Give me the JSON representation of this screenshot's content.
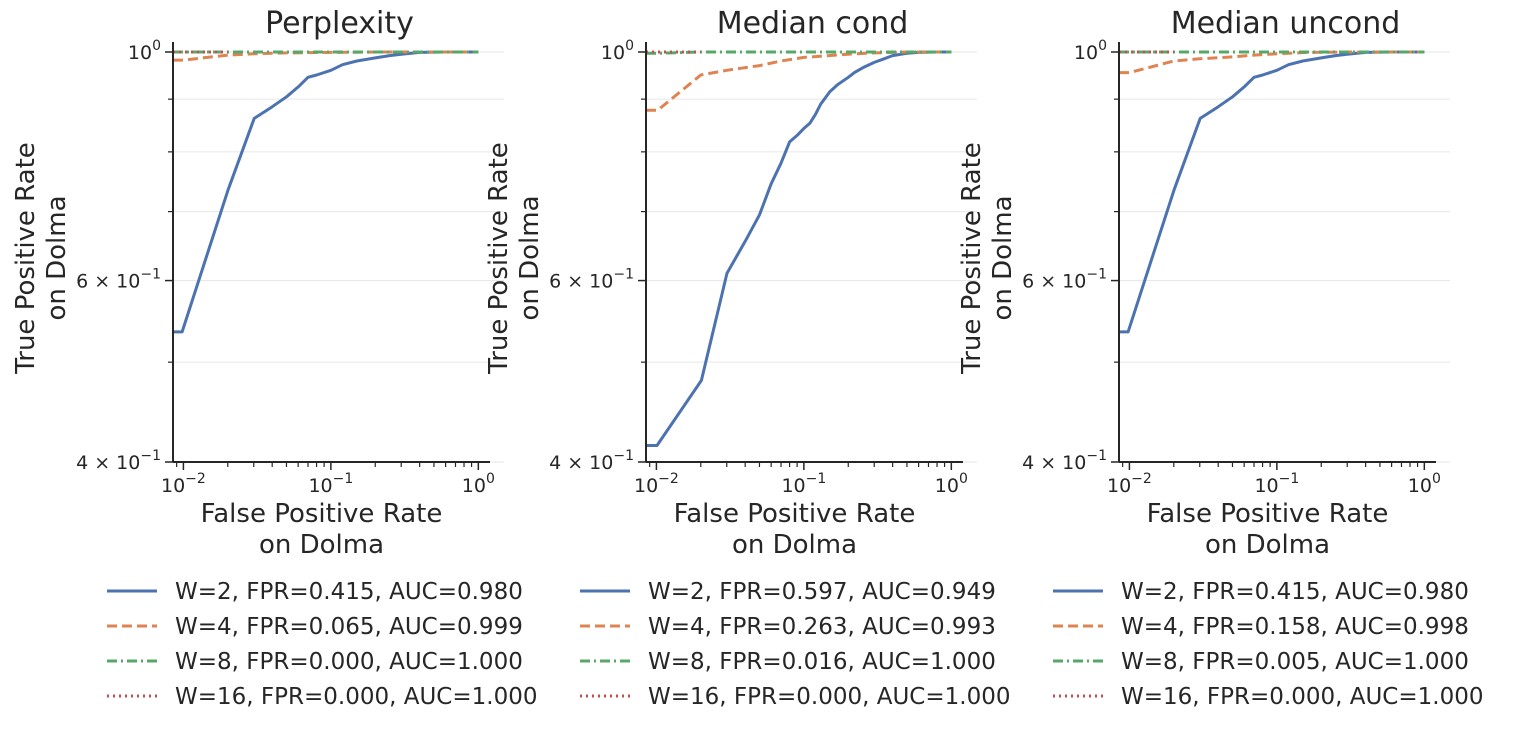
{
  "chart_data": [
    {
      "type": "line",
      "title": "Perplexity",
      "xlabel": "False Positive Rate\non Dolma",
      "ylabel": "True Positive Rate\non Dolma",
      "xscale": "log",
      "yscale": "log",
      "xlim": [
        0.0085,
        1.2
      ],
      "ylim": [
        0.4,
        1.0
      ],
      "grid": "horizontal",
      "xticks": [
        {
          "value": 0.01,
          "base": "10",
          "exp": "−2"
        },
        {
          "value": 0.1,
          "base": "10",
          "exp": "−1"
        },
        {
          "value": 1,
          "base": "10",
          "exp": "0"
        }
      ],
      "yticks": [
        {
          "value": 0.4,
          "prefix": "4 × 10",
          "exp": "−1"
        },
        {
          "value": 0.6,
          "prefix": "6 × 10",
          "exp": "−1"
        },
        {
          "value": 1.0,
          "prefix": "10",
          "exp": "0"
        }
      ],
      "legend_position": "bottom",
      "series": [
        {
          "name": "W=2",
          "label": "W=2, FPR=0.415, AUC=0.980",
          "color": "#4c72b0",
          "style": "solid",
          "x": [
            0.0085,
            0.0098,
            0.0201,
            0.0302,
            0.0401,
            0.0502,
            0.06,
            0.07,
            0.08,
            0.1,
            0.12,
            0.15,
            0.2,
            0.25,
            0.3,
            0.4,
            0.6,
            1.0
          ],
          "y": [
            0.535,
            0.535,
            0.735,
            0.862,
            0.885,
            0.905,
            0.925,
            0.945,
            0.95,
            0.96,
            0.972,
            0.98,
            0.987,
            0.992,
            0.995,
            0.999,
            1.0,
            1.0
          ]
        },
        {
          "name": "W=4",
          "label": "W=4, FPR=0.065, AUC=0.999",
          "color": "#dd8452",
          "style": "dashed",
          "x": [
            0.0085,
            0.01,
            0.02,
            0.03,
            0.05,
            0.1,
            0.2,
            0.4,
            1.0
          ],
          "y": [
            0.982,
            0.982,
            0.993,
            0.996,
            0.998,
            0.999,
            1.0,
            1.0,
            1.0
          ]
        },
        {
          "name": "W=8",
          "label": "W=8, FPR=0.000, AUC=1.000",
          "color": "#55a868",
          "style": "dashdot",
          "x": [
            0.0085,
            1.0
          ],
          "y": [
            1.0,
            1.0
          ]
        },
        {
          "name": "W=16",
          "label": "W=16, FPR=0.000, AUC=1.000",
          "color": "#c44e52",
          "style": "dotted",
          "x": [
            0.0085,
            0.02
          ],
          "y": [
            1.0,
            1.0
          ]
        }
      ]
    },
    {
      "type": "line",
      "title": "Median cond",
      "xlabel": "False Positive Rate\non Dolma",
      "ylabel": "True Positive Rate\non Dolma",
      "xscale": "log",
      "yscale": "log",
      "xlim": [
        0.0085,
        1.2
      ],
      "ylim": [
        0.4,
        1.0
      ],
      "grid": "horizontal",
      "xticks": [
        {
          "value": 0.01,
          "base": "10",
          "exp": "−2"
        },
        {
          "value": 0.1,
          "base": "10",
          "exp": "−1"
        },
        {
          "value": 1,
          "base": "10",
          "exp": "0"
        }
      ],
      "yticks": [
        {
          "value": 0.4,
          "prefix": "4 × 10",
          "exp": "−1"
        },
        {
          "value": 0.6,
          "prefix": "6 × 10",
          "exp": "−1"
        },
        {
          "value": 1.0,
          "prefix": "10",
          "exp": "0"
        }
      ],
      "legend_position": "bottom",
      "series": [
        {
          "name": "W=2",
          "label": "W=2, FPR=0.597, AUC=0.949",
          "color": "#4c72b0",
          "style": "solid",
          "x": [
            0.0085,
            0.0101,
            0.0202,
            0.0301,
            0.04,
            0.05,
            0.06,
            0.07,
            0.08,
            0.09,
            0.1,
            0.11,
            0.12,
            0.13,
            0.15,
            0.17,
            0.2,
            0.22,
            0.25,
            0.3,
            0.35,
            0.4,
            0.5,
            0.6,
            0.8,
            1.0
          ],
          "y": [
            0.415,
            0.415,
            0.48,
            0.61,
            0.655,
            0.695,
            0.745,
            0.78,
            0.818,
            0.83,
            0.843,
            0.853,
            0.87,
            0.89,
            0.915,
            0.93,
            0.945,
            0.955,
            0.965,
            0.977,
            0.985,
            0.992,
            0.997,
            0.999,
            1.0,
            1.0
          ]
        },
        {
          "name": "W=4",
          "label": "W=4, FPR=0.263, AUC=0.993",
          "color": "#dd8452",
          "style": "dashed",
          "x": [
            0.0085,
            0.0102,
            0.02,
            0.03,
            0.05,
            0.07,
            0.1,
            0.2,
            0.3,
            0.5,
            1.0
          ],
          "y": [
            0.878,
            0.878,
            0.95,
            0.96,
            0.97,
            0.98,
            0.988,
            0.995,
            0.998,
            1.0,
            1.0
          ]
        },
        {
          "name": "W=8",
          "label": "W=8, FPR=0.016, AUC=1.000",
          "color": "#55a868",
          "style": "dashdot",
          "x": [
            0.0085,
            0.01,
            0.02,
            1.0
          ],
          "y": [
            0.997,
            0.997,
            1.0,
            1.0
          ]
        },
        {
          "name": "W=16",
          "label": "W=16, FPR=0.000, AUC=1.000",
          "color": "#c44e52",
          "style": "dotted",
          "x": [
            0.0085,
            0.02
          ],
          "y": [
            1.0,
            1.0
          ]
        }
      ]
    },
    {
      "type": "line",
      "title": "Median uncond",
      "xlabel": "False Positive Rate\non Dolma",
      "ylabel": "True Positive Rate\non Dolma",
      "xscale": "log",
      "yscale": "log",
      "xlim": [
        0.0085,
        1.2
      ],
      "ylim": [
        0.4,
        1.0
      ],
      "grid": "horizontal",
      "xticks": [
        {
          "value": 0.01,
          "base": "10",
          "exp": "−2"
        },
        {
          "value": 0.1,
          "base": "10",
          "exp": "−1"
        },
        {
          "value": 1,
          "base": "10",
          "exp": "0"
        }
      ],
      "yticks": [
        {
          "value": 0.4,
          "prefix": "4 × 10",
          "exp": "−1"
        },
        {
          "value": 0.6,
          "prefix": "6 × 10",
          "exp": "−1"
        },
        {
          "value": 1.0,
          "prefix": "10",
          "exp": "0"
        }
      ],
      "legend_position": "bottom",
      "series": [
        {
          "name": "W=2",
          "label": "W=2, FPR=0.415, AUC=0.980",
          "color": "#4c72b0",
          "style": "solid",
          "x": [
            0.0085,
            0.0098,
            0.0201,
            0.0302,
            0.0401,
            0.0502,
            0.06,
            0.07,
            0.08,
            0.1,
            0.12,
            0.15,
            0.2,
            0.25,
            0.3,
            0.4,
            0.6,
            1.0
          ],
          "y": [
            0.535,
            0.535,
            0.735,
            0.862,
            0.885,
            0.905,
            0.925,
            0.945,
            0.95,
            0.96,
            0.972,
            0.98,
            0.987,
            0.992,
            0.995,
            0.999,
            1.0,
            1.0
          ]
        },
        {
          "name": "W=4",
          "label": "W=4, FPR=0.158, AUC=0.998",
          "color": "#dd8452",
          "style": "dashed",
          "x": [
            0.0085,
            0.01,
            0.02,
            0.03,
            0.05,
            0.07,
            0.1,
            0.16,
            0.3,
            1.0
          ],
          "y": [
            0.955,
            0.955,
            0.98,
            0.985,
            0.989,
            0.993,
            0.996,
            0.999,
            1.0,
            1.0
          ]
        },
        {
          "name": "W=8",
          "label": "W=8, FPR=0.005, AUC=1.000",
          "color": "#55a868",
          "style": "dashdot",
          "x": [
            0.0085,
            1.0
          ],
          "y": [
            1.0,
            1.0
          ]
        },
        {
          "name": "W=16",
          "label": "W=16, FPR=0.000, AUC=1.000",
          "color": "#c44e52",
          "style": "dotted",
          "x": [
            0.0085,
            0.02
          ],
          "y": [
            1.0,
            1.0
          ]
        }
      ]
    }
  ]
}
